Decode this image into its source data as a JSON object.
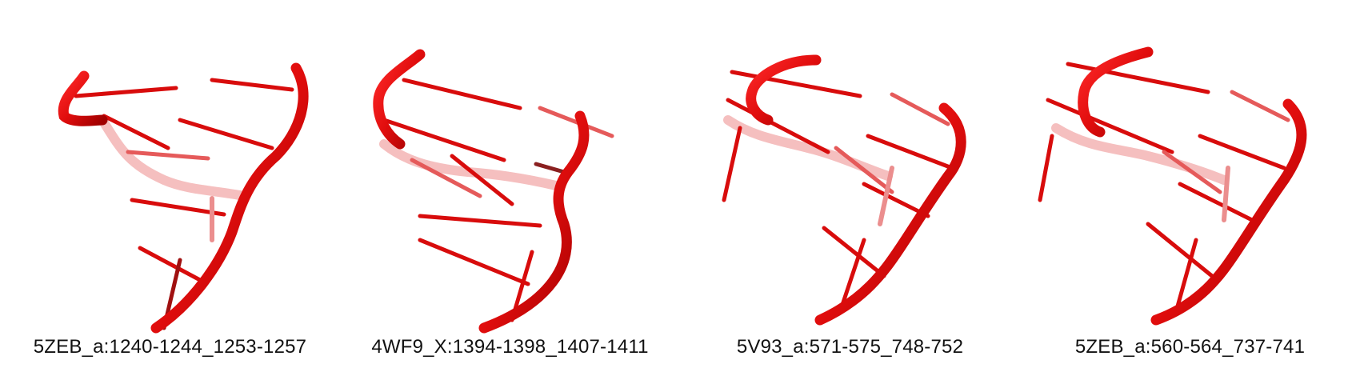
{
  "colors": {
    "backbone": "#e01010",
    "backbone_dark": "#8a0000",
    "rung": "#d80c0c",
    "caption_text": "#111111",
    "background": "#ffffff"
  },
  "panels": [
    {
      "caption": "5ZEB_a:1240-1244_1253-1257"
    },
    {
      "caption": "4WF9_X:1394-1398_1407-1411"
    },
    {
      "caption": "5V93_a:571-575_748-752"
    },
    {
      "caption": "5ZEB_a:560-564_737-741"
    }
  ]
}
